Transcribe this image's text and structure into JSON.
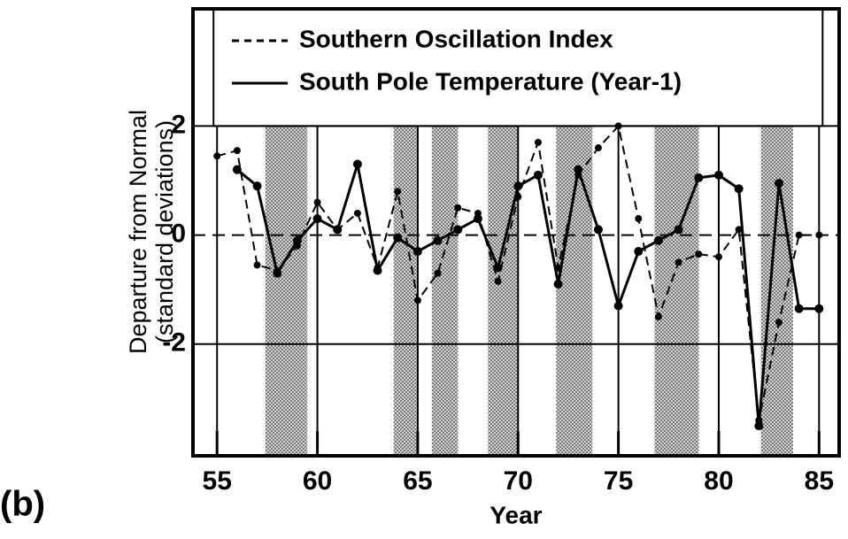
{
  "chart_data": {
    "type": "line",
    "panel_label": "(b)",
    "xlabel": "Year",
    "ylabel": [
      "Departure from Normal",
      "(standard deviations)"
    ],
    "x": [
      55,
      56,
      57,
      58,
      59,
      60,
      61,
      62,
      63,
      64,
      65,
      66,
      67,
      68,
      69,
      70,
      71,
      72,
      73,
      74,
      75,
      76,
      77,
      78,
      79,
      80,
      81,
      82,
      83,
      84,
      85
    ],
    "series": [
      {
        "name": "Southern Oscillation Index",
        "color": "#000000",
        "dash": true,
        "values": [
          1.45,
          1.55,
          -0.55,
          -0.65,
          -0.2,
          0.6,
          0.1,
          0.4,
          -0.6,
          0.8,
          -1.2,
          -0.7,
          0.5,
          0.4,
          -0.85,
          0.7,
          1.7,
          -0.6,
          1.1,
          1.6,
          2.0,
          0.3,
          -1.5,
          -0.5,
          -0.35,
          -0.4,
          0.1,
          -3.4,
          -1.6,
          0,
          0
        ]
      },
      {
        "name": "South Pole Temperature (Year-1)",
        "color": "#000000",
        "dash": false,
        "values": [
          null,
          1.2,
          0.9,
          -0.7,
          -0.1,
          0.3,
          0.1,
          1.3,
          -0.65,
          -0.05,
          -0.3,
          -0.1,
          0.1,
          0.3,
          -0.6,
          0.9,
          1.1,
          -0.9,
          1.2,
          0.1,
          -1.3,
          -0.3,
          -0.1,
          0.1,
          1.05,
          1.1,
          0.85,
          -3.5,
          0.95,
          -1.35,
          -1.35
        ]
      }
    ],
    "shaded": [
      [
        57.4,
        59.5
      ],
      [
        63.8,
        64.95
      ],
      [
        65.7,
        67.0
      ],
      [
        68.5,
        70.0
      ],
      [
        71.9,
        73.7
      ],
      [
        76.8,
        79.0
      ],
      [
        82.1,
        83.7
      ]
    ],
    "xlim": [
      53.8,
      86
    ],
    "ylim": [
      -4.05,
      4.15
    ],
    "xticks": [
      55,
      60,
      65,
      70,
      75,
      80,
      85
    ],
    "yticks": [
      -2,
      0,
      2
    ],
    "grid": true
  }
}
